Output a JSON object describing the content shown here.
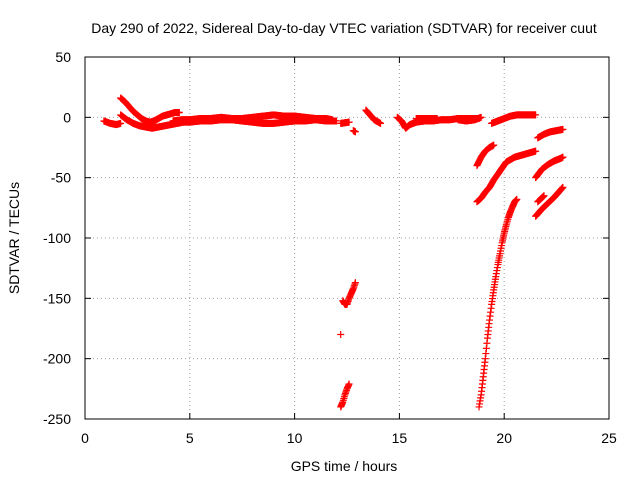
{
  "chart_data": {
    "type": "scatter",
    "title": "Day 290 of 2022, Sidereal Day-to-day VTEC variation (SDTVAR) for receiver cuut",
    "xlabel": "GPS time / hours",
    "ylabel": "SDTVAR / TECUs",
    "xlim": [
      0,
      25
    ],
    "ylim": [
      -250,
      50
    ],
    "xticks": [
      0,
      5,
      10,
      15,
      20,
      25
    ],
    "yticks": [
      -250,
      -200,
      -150,
      -100,
      -50,
      0,
      50
    ],
    "grid": true,
    "marker": "plus",
    "color": "#ff0000",
    "segments": [
      [
        [
          0.9,
          -3
        ],
        [
          1.2,
          -5
        ],
        [
          1.5,
          -6
        ],
        [
          1.7,
          -5
        ]
      ],
      [
        [
          1.7,
          16
        ],
        [
          1.9,
          13
        ],
        [
          2.1,
          9
        ],
        [
          2.3,
          5
        ],
        [
          2.5,
          2
        ],
        [
          2.7,
          -1
        ],
        [
          2.9,
          -3
        ],
        [
          3.1,
          -4
        ],
        [
          3.3,
          -3
        ],
        [
          3.5,
          -1
        ],
        [
          3.7,
          1
        ],
        [
          3.9,
          2
        ],
        [
          4.1,
          3
        ],
        [
          4.3,
          4
        ],
        [
          4.5,
          4
        ]
      ],
      [
        [
          1.7,
          2
        ],
        [
          2.0,
          -2
        ],
        [
          2.3,
          -5
        ],
        [
          2.6,
          -7
        ],
        [
          2.9,
          -8
        ],
        [
          3.2,
          -9
        ],
        [
          3.5,
          -8
        ],
        [
          3.8,
          -7
        ],
        [
          4.1,
          -6
        ],
        [
          4.4,
          -5
        ],
        [
          4.7,
          -4
        ],
        [
          5.0,
          -4
        ],
        [
          5.5,
          -3
        ],
        [
          6.0,
          -3
        ],
        [
          6.5,
          -2
        ],
        [
          7.0,
          -2
        ]
      ],
      [
        [
          4.2,
          -3
        ],
        [
          4.6,
          -2
        ],
        [
          5.0,
          -2
        ],
        [
          5.5,
          -1
        ],
        [
          6.0,
          -1
        ],
        [
          6.5,
          0
        ],
        [
          7.0,
          -1
        ],
        [
          7.5,
          -1
        ],
        [
          8.0,
          0
        ],
        [
          8.5,
          1
        ],
        [
          9.0,
          2
        ],
        [
          9.5,
          1
        ],
        [
          10.0,
          1
        ],
        [
          10.5,
          0
        ],
        [
          11.0,
          -1
        ],
        [
          11.5,
          -1
        ],
        [
          11.8,
          -2
        ]
      ],
      [
        [
          7.0,
          -2
        ],
        [
          7.5,
          -3
        ],
        [
          8.0,
          -4
        ],
        [
          8.5,
          -5
        ],
        [
          9.0,
          -5
        ],
        [
          9.5,
          -4
        ],
        [
          10.0,
          -3
        ],
        [
          10.5,
          -3
        ],
        [
          11.0,
          -2
        ],
        [
          11.5,
          -3
        ],
        [
          12.0,
          -3
        ]
      ],
      [
        [
          12.2,
          -5
        ],
        [
          12.6,
          -4
        ]
      ],
      [
        [
          12.3,
          -152
        ],
        [
          12.4,
          -155
        ],
        [
          12.5,
          -155
        ],
        [
          12.6,
          -150
        ],
        [
          12.7,
          -146
        ],
        [
          12.8,
          -142
        ],
        [
          12.9,
          -137
        ]
      ],
      [
        [
          12.2,
          -180
        ]
      ],
      [
        [
          12.2,
          -240
        ],
        [
          12.3,
          -236
        ],
        [
          12.4,
          -230
        ],
        [
          12.5,
          -225
        ],
        [
          12.6,
          -221
        ]
      ],
      [
        [
          12.8,
          -11
        ],
        [
          12.9,
          -12
        ]
      ],
      [
        [
          13.4,
          6
        ],
        [
          13.6,
          2
        ],
        [
          13.8,
          -2
        ],
        [
          14.0,
          -4
        ],
        [
          14.1,
          -5
        ]
      ],
      [
        [
          14.9,
          0
        ],
        [
          15.1,
          -3
        ],
        [
          15.3,
          -9
        ],
        [
          15.5,
          -6
        ],
        [
          15.8,
          -4
        ],
        [
          16.2,
          -3
        ],
        [
          16.6,
          -3
        ],
        [
          17.0,
          -2
        ],
        [
          17.4,
          -2
        ],
        [
          17.8,
          -1
        ],
        [
          18.2,
          -1
        ],
        [
          18.5,
          -1
        ],
        [
          18.8,
          -1
        ]
      ],
      [
        [
          15.8,
          -1
        ],
        [
          16.3,
          -1
        ],
        [
          16.8,
          -1
        ]
      ],
      [
        [
          17.8,
          -2
        ],
        [
          18.2,
          -3
        ],
        [
          18.6,
          -2
        ],
        [
          18.9,
          0
        ]
      ],
      [
        [
          19.4,
          -5
        ],
        [
          19.7,
          -3
        ],
        [
          20.0,
          -1
        ],
        [
          20.3,
          1
        ],
        [
          20.6,
          2
        ],
        [
          20.9,
          2
        ],
        [
          21.2,
          2
        ],
        [
          21.5,
          2
        ]
      ],
      [
        [
          18.7,
          -40
        ],
        [
          18.9,
          -33
        ],
        [
          19.1,
          -28
        ],
        [
          19.3,
          -25
        ],
        [
          19.5,
          -23
        ]
      ],
      [
        [
          18.7,
          -70
        ],
        [
          18.9,
          -67
        ],
        [
          19.1,
          -62
        ],
        [
          19.3,
          -58
        ],
        [
          19.5,
          -52
        ],
        [
          19.7,
          -47
        ],
        [
          19.9,
          -42
        ],
        [
          20.1,
          -37
        ],
        [
          20.3,
          -35
        ],
        [
          20.5,
          -33
        ],
        [
          20.7,
          -32
        ],
        [
          20.9,
          -31
        ],
        [
          21.1,
          -30
        ],
        [
          21.3,
          -29
        ],
        [
          21.5,
          -28
        ]
      ],
      [
        [
          18.8,
          -240
        ],
        [
          18.9,
          -230
        ],
        [
          19.0,
          -215
        ],
        [
          19.1,
          -200
        ],
        [
          19.2,
          -183
        ],
        [
          19.3,
          -168
        ],
        [
          19.4,
          -155
        ],
        [
          19.5,
          -143
        ],
        [
          19.6,
          -132
        ],
        [
          19.7,
          -122
        ],
        [
          19.8,
          -113
        ],
        [
          19.9,
          -104
        ],
        [
          20.0,
          -96
        ],
        [
          20.1,
          -89
        ],
        [
          20.2,
          -83
        ],
        [
          20.3,
          -78
        ],
        [
          20.4,
          -74
        ],
        [
          20.5,
          -70
        ],
        [
          20.6,
          -68
        ]
      ],
      [
        [
          21.6,
          -17
        ],
        [
          21.9,
          -14
        ],
        [
          22.2,
          -12
        ],
        [
          22.5,
          -11
        ],
        [
          22.8,
          -10
        ]
      ],
      [
        [
          21.5,
          -50
        ],
        [
          21.8,
          -43
        ],
        [
          22.1,
          -39
        ],
        [
          22.4,
          -36
        ],
        [
          22.7,
          -34
        ],
        [
          22.8,
          -33
        ]
      ],
      [
        [
          21.5,
          -82
        ],
        [
          21.8,
          -76
        ],
        [
          22.1,
          -71
        ],
        [
          22.4,
          -66
        ],
        [
          22.6,
          -62
        ],
        [
          22.8,
          -58
        ]
      ],
      [
        [
          21.6,
          -70
        ],
        [
          21.9,
          -65
        ]
      ]
    ]
  }
}
